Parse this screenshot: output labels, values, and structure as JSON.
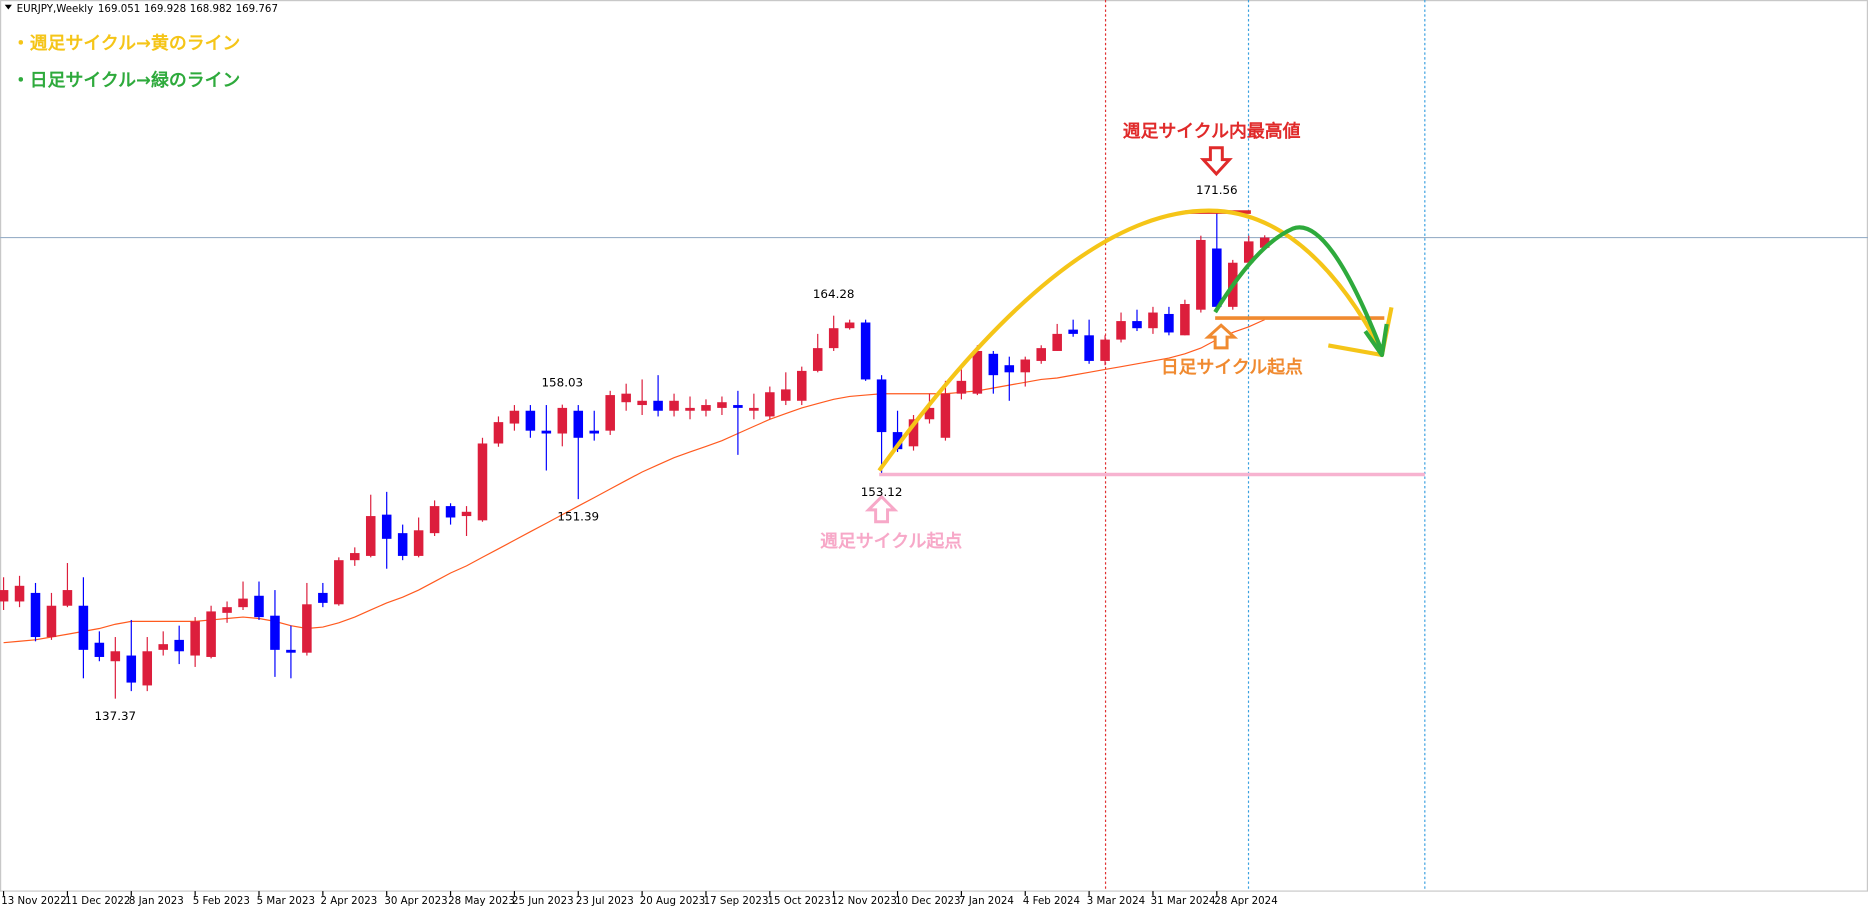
{
  "chart_data": {
    "type": "candlestick",
    "symbol": "EURJPY,Weekly",
    "up_color": "#dc1e3c",
    "down_color": "#0000ff",
    "ylim": [
      123.85,
      186.46
    ],
    "categories": [
      "13 Nov 2022",
      null,
      null,
      null,
      "11 Dec 2022",
      null,
      null,
      null,
      "8 Jan 2023",
      null,
      null,
      null,
      "5 Feb 2023",
      null,
      null,
      null,
      "5 Mar 2023",
      null,
      null,
      null,
      "2 Apr 2023",
      null,
      null,
      null,
      "30 Apr 2023",
      null,
      null,
      null,
      "28 May 2023",
      null,
      null,
      null,
      "25 Jun 2023",
      null,
      null,
      null,
      "23 Jul 2023",
      null,
      null,
      null,
      "20 Aug 2023",
      null,
      null,
      null,
      "17 Sep 2023",
      null,
      null,
      null,
      "15 Oct 2023",
      null,
      null,
      null,
      "12 Nov 2023",
      null,
      null,
      null,
      "10 Dec 2023",
      null,
      null,
      null,
      "7 Jan 2024",
      null,
      null,
      null,
      "4 Feb 2024",
      null,
      null,
      null,
      "3 Mar 2024",
      null,
      null,
      null,
      "31 Mar 2024",
      null,
      null,
      null,
      "28 Apr 2024",
      null,
      null,
      null
    ],
    "ohlc": [
      [
        144.2,
        145.9,
        143.6,
        145.0
      ],
      [
        144.2,
        146.0,
        143.8,
        145.3
      ],
      [
        144.8,
        145.5,
        141.4,
        141.7
      ],
      [
        141.7,
        144.8,
        141.5,
        143.9
      ],
      [
        143.9,
        146.9,
        143.8,
        145.0
      ],
      [
        143.9,
        145.9,
        138.8,
        140.8
      ],
      [
        141.3,
        142.1,
        140.0,
        140.3
      ],
      [
        140.0,
        141.7,
        137.37,
        140.7
      ],
      [
        140.4,
        142.9,
        137.9,
        138.5
      ],
      [
        138.3,
        141.7,
        137.9,
        140.7
      ],
      [
        140.8,
        142.1,
        140.4,
        141.2
      ],
      [
        141.5,
        142.5,
        139.8,
        140.7
      ],
      [
        140.4,
        143.1,
        139.6,
        142.8
      ],
      [
        140.3,
        143.9,
        140.2,
        143.5
      ],
      [
        143.4,
        144.2,
        142.7,
        143.8
      ],
      [
        143.8,
        145.6,
        143.6,
        144.4
      ],
      [
        144.6,
        145.6,
        142.9,
        143.1
      ],
      [
        143.2,
        145.0,
        138.9,
        140.8
      ],
      [
        140.8,
        142.5,
        138.8,
        140.6
      ],
      [
        140.6,
        145.5,
        140.4,
        144.0
      ],
      [
        144.8,
        145.5,
        143.8,
        144.1
      ],
      [
        144.0,
        147.3,
        143.9,
        147.1
      ],
      [
        147.1,
        148.0,
        146.7,
        147.6
      ],
      [
        147.4,
        151.7,
        147.3,
        150.2
      ],
      [
        150.3,
        151.9,
        146.5,
        148.6
      ],
      [
        149.0,
        149.6,
        147.1,
        147.4
      ],
      [
        147.4,
        150.1,
        147.3,
        149.2
      ],
      [
        149.0,
        151.3,
        148.8,
        150.9
      ],
      [
        150.9,
        151.1,
        149.6,
        150.1
      ],
      [
        150.2,
        150.9,
        148.8,
        150.5
      ],
      [
        149.9,
        155.7,
        149.8,
        155.3
      ],
      [
        155.3,
        157.2,
        155.07,
        156.8
      ],
      [
        156.7,
        158.0,
        156.2,
        157.6
      ],
      [
        157.6,
        158.0,
        155.7,
        156.2
      ],
      [
        156.2,
        158.0,
        153.4,
        156.0
      ],
      [
        156.0,
        158.03,
        155.1,
        157.8
      ],
      [
        157.6,
        158.0,
        151.39,
        155.7
      ],
      [
        156.2,
        157.6,
        155.5,
        156.0
      ],
      [
        156.2,
        159.0,
        155.9,
        158.7
      ],
      [
        158.2,
        159.5,
        157.6,
        158.8
      ],
      [
        158.0,
        159.8,
        157.3,
        158.3
      ],
      [
        158.3,
        160.1,
        157.2,
        157.6
      ],
      [
        157.6,
        158.8,
        157.2,
        158.3
      ],
      [
        157.6,
        158.6,
        157.0,
        157.8
      ],
      [
        157.6,
        158.4,
        157.2,
        158.0
      ],
      [
        157.8,
        158.6,
        157.3,
        158.2
      ],
      [
        158.0,
        159.0,
        154.5,
        157.8
      ],
      [
        157.6,
        158.8,
        157.0,
        157.8
      ],
      [
        157.2,
        159.3,
        157.0,
        158.9
      ],
      [
        158.3,
        160.3,
        158.0,
        159.1
      ],
      [
        158.3,
        160.7,
        158.0,
        160.4
      ],
      [
        160.4,
        163.0,
        160.3,
        162.0
      ],
      [
        162.0,
        164.28,
        161.8,
        163.4
      ],
      [
        163.4,
        164.0,
        163.3,
        163.8
      ],
      [
        163.8,
        164.0,
        159.7,
        159.8
      ],
      [
        159.8,
        160.1,
        153.12,
        156.1
      ],
      [
        156.1,
        157.6,
        154.7,
        154.9
      ],
      [
        155.1,
        157.3,
        154.8,
        157.0
      ],
      [
        157.0,
        158.8,
        156.7,
        157.8
      ],
      [
        155.7,
        159.7,
        155.5,
        158.8
      ],
      [
        158.8,
        160.5,
        158.4,
        159.7
      ],
      [
        158.8,
        162.2,
        158.7,
        161.8
      ],
      [
        161.6,
        161.8,
        158.8,
        160.1
      ],
      [
        160.8,
        161.4,
        158.3,
        160.3
      ],
      [
        160.3,
        161.4,
        159.3,
        161.2
      ],
      [
        161.1,
        162.2,
        160.9,
        162.0
      ],
      [
        161.8,
        163.7,
        161.8,
        163.0
      ],
      [
        163.3,
        164.0,
        162.8,
        163.0
      ],
      [
        162.9,
        164.0,
        160.9,
        161.1
      ],
      [
        161.1,
        162.9,
        160.8,
        162.6
      ],
      [
        162.6,
        164.5,
        162.4,
        163.9
      ],
      [
        163.9,
        164.7,
        163.2,
        163.4
      ],
      [
        163.4,
        164.9,
        163.0,
        164.5
      ],
      [
        164.4,
        164.9,
        162.9,
        163.1
      ],
      [
        162.9,
        165.4,
        162.9,
        165.1
      ],
      [
        164.7,
        169.9,
        164.5,
        169.6
      ],
      [
        169.0,
        171.56,
        164.5,
        164.9
      ],
      [
        164.9,
        168.2,
        164.7,
        168.0
      ],
      [
        168.0,
        169.9,
        167.9,
        169.5
      ],
      [
        169.051,
        169.928,
        168.982,
        169.767
      ]
    ],
    "ma": {
      "color": "#ff5a1f",
      "values": [
        141.3,
        141.4,
        141.5,
        141.7,
        141.9,
        142.1,
        142.3,
        142.6,
        142.8,
        142.8,
        142.8,
        142.8,
        142.8,
        142.9,
        143.0,
        143.1,
        143.0,
        142.8,
        142.5,
        142.3,
        142.4,
        142.7,
        143.1,
        143.6,
        144.1,
        144.5,
        145.0,
        145.6,
        146.2,
        146.7,
        147.3,
        147.9,
        148.5,
        149.1,
        149.7,
        150.3,
        150.9,
        151.5,
        152.1,
        152.7,
        153.3,
        153.8,
        154.3,
        154.7,
        155.1,
        155.5,
        156.0,
        156.5,
        157.0,
        157.4,
        157.8,
        158.1,
        158.4,
        158.6,
        158.7,
        158.8,
        158.8,
        158.8,
        158.8,
        158.8,
        158.9,
        159.0,
        159.2,
        159.4,
        159.6,
        159.8,
        159.9,
        160.1,
        160.3,
        160.5,
        160.7,
        160.9,
        161.1,
        161.3,
        161.6,
        162.0,
        162.6,
        163.1,
        163.5,
        164.0
      ]
    },
    "price_labels": [
      137.37,
      151.39,
      158.03,
      164.28,
      153.12,
      171.56
    ],
    "annotations": {
      "legend_weekly": "・週足サイクル→黄のライン",
      "legend_daily": "・日足サイクル→緑のライン",
      "weekly_high": "週足サイクル内最高値",
      "daily_start": "日足サイクル起点",
      "weekly_start": "週足サイクル起点"
    }
  }
}
